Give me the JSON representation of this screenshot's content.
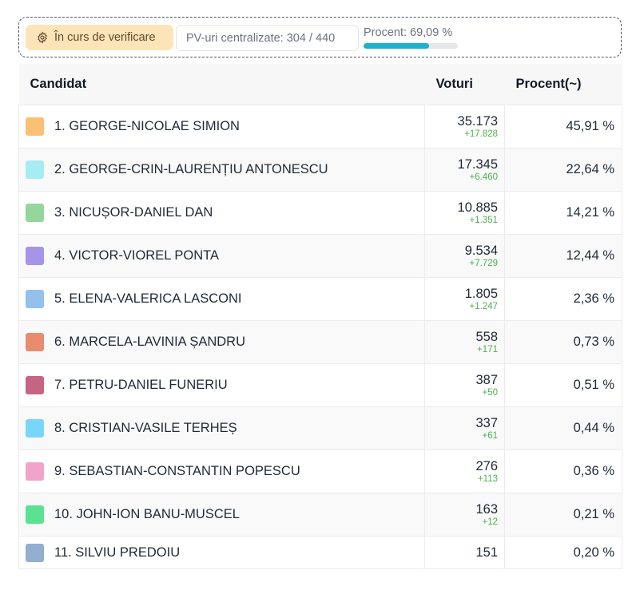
{
  "status": {
    "label": "În curs de verificare",
    "pv": "PV-uri centralizate: 304 / 440",
    "percent_label": "Procent: 69,09 %",
    "percent_value": 69.09,
    "bar_color": "#1ab3cf"
  },
  "table": {
    "headers": {
      "candidate": "Candidat",
      "votes": "Voturi",
      "percent": "Procent(~)"
    },
    "rows": [
      {
        "name": "1. GEORGE-NICOLAE SIMION",
        "votes": "35.173",
        "delta": "+17.828",
        "percent": "45,91 %",
        "color": "#fbbf75"
      },
      {
        "name": "2. GEORGE-CRIN-LAURENȚIU ANTONESCU",
        "votes": "17.345",
        "delta": "+6.460",
        "percent": "22,64 %",
        "color": "#a7ecf2"
      },
      {
        "name": "3. NICUȘOR-DANIEL DAN",
        "votes": "10.885",
        "delta": "+1.351",
        "percent": "14,21 %",
        "color": "#93d79a"
      },
      {
        "name": "4. VICTOR-VIOREL PONTA",
        "votes": "9.534",
        "delta": "+7.729",
        "percent": "12,44 %",
        "color": "#a594e8"
      },
      {
        "name": "5. ELENA-VALERICA LASCONI",
        "votes": "1.805",
        "delta": "+1.247",
        "percent": "2,36 %",
        "color": "#93c0ec"
      },
      {
        "name": "6. MARCELA-LAVINIA ȘANDRU",
        "votes": "558",
        "delta": "+171",
        "percent": "0,73 %",
        "color": "#e98c6d"
      },
      {
        "name": "7. PETRU-DANIEL FUNERIU",
        "votes": "387",
        "delta": "+50",
        "percent": "0,51 %",
        "color": "#c76483"
      },
      {
        "name": "8. CRISTIAN-VASILE TERHEȘ",
        "votes": "337",
        "delta": "+61",
        "percent": "0,44 %",
        "color": "#79d6fb"
      },
      {
        "name": "9. SEBASTIAN-CONSTANTIN POPESCU",
        "votes": "276",
        "delta": "+113",
        "percent": "0,36 %",
        "color": "#f2a3c9"
      },
      {
        "name": "10. JOHN-ION BANU-MUSCEL",
        "votes": "163",
        "delta": "+12",
        "percent": "0,21 %",
        "color": "#5ae290"
      },
      {
        "name": "11. SILVIU PREDOIU",
        "votes": "151",
        "delta": "",
        "percent": "0,20 %",
        "color": "#93aece"
      }
    ]
  }
}
